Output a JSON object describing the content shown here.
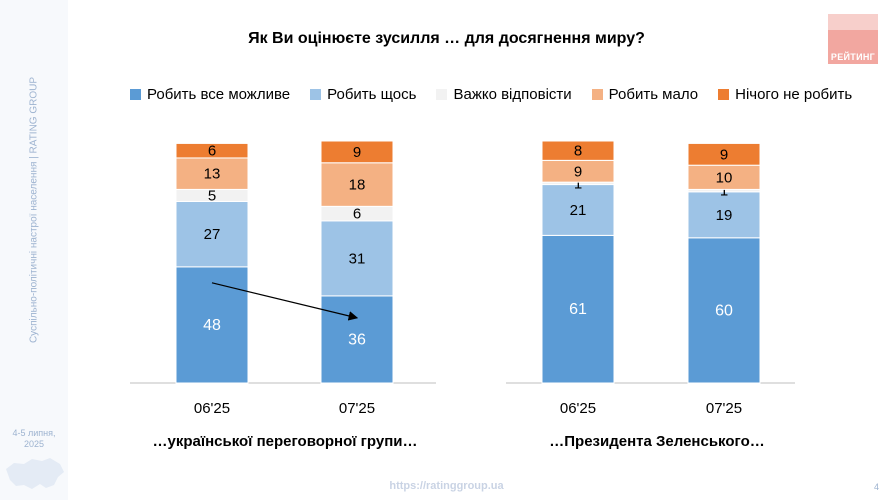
{
  "sidebar": {
    "vertical_text": "Суспільно-політичні настрої населення | RATING GROUP",
    "date_line1": "4-5 липня,",
    "date_line2": "2025"
  },
  "logo": {
    "text": "РЕЙТИНГ"
  },
  "footer": {
    "url": "https://ratinggroup.ua",
    "page": "4"
  },
  "colors": {
    "all_possible": "#5b9bd5",
    "something": "#9dc3e6",
    "hard": "#f2f2f2",
    "little": "#f4b183",
    "nothing": "#ed7d31"
  },
  "chart_data": {
    "type": "bar",
    "stacked": true,
    "title": "Як Ви оцінюєте зусилля … для досягнення миру?",
    "legend": [
      "Робить все можливе",
      "Робить щось",
      "Важко відповісти",
      "Робить мало",
      "Нічого не робить"
    ],
    "groups": [
      {
        "label": "…української переговорної групи…",
        "categories": [
          "06'25",
          "07'25"
        ],
        "series": [
          {
            "name": "Робить все можливе",
            "values": [
              48,
              36
            ]
          },
          {
            "name": "Робить щось",
            "values": [
              27,
              31
            ]
          },
          {
            "name": "Важко відповісти",
            "values": [
              5,
              6
            ]
          },
          {
            "name": "Робить мало",
            "values": [
              13,
              18
            ]
          },
          {
            "name": "Нічого не робить",
            "values": [
              6,
              9
            ]
          }
        ]
      },
      {
        "label": "…Президента Зеленського…",
        "categories": [
          "06'25",
          "07'25"
        ],
        "series": [
          {
            "name": "Робить все можливе",
            "values": [
              61,
              60
            ]
          },
          {
            "name": "Робить щось",
            "values": [
              21,
              19
            ]
          },
          {
            "name": "Важко відповісти",
            "values": [
              1,
              1
            ]
          },
          {
            "name": "Робить мало",
            "values": [
              9,
              10
            ]
          },
          {
            "name": "Нічого не робить",
            "values": [
              8,
              9
            ]
          }
        ]
      }
    ],
    "annotations": [
      "arrow from 06'25 to 07'25 in 'Робить все можливе' of first group"
    ]
  }
}
